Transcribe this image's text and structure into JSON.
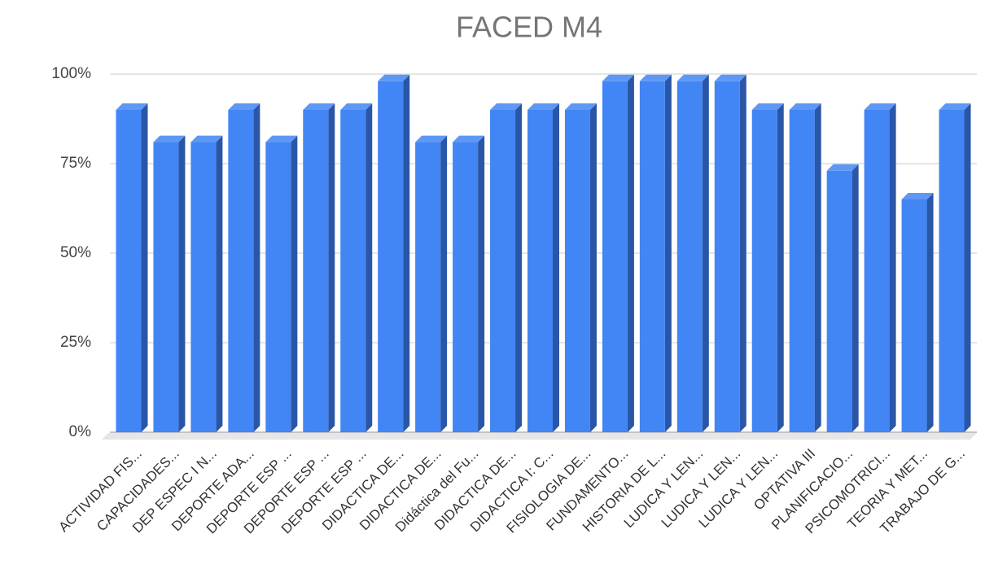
{
  "chart_data": {
    "type": "bar3d",
    "title": "FACED M4",
    "categories": [
      "ACTIVIDAD FIS...",
      "CAPACIDADES...",
      "DEP ESPEC I N...",
      "DEPORTE ADA...",
      "DEPORTE ESP ...",
      "DEPORTE ESP ...",
      "DEPORTE ESP ...",
      "DIDACTICA DE...",
      "DIDACTICA DE...",
      "Didáctica del Fu...",
      "DIDACTICA DE...",
      "DIDACTICA I: C...",
      "FISIOLOGIA DE...",
      "FUNDAMENTO...",
      "HISTORIA DE L...",
      "LUDICA Y LEN...",
      "LUDICA Y LEN...",
      "LUDICA Y LEN...",
      "OPTATIVA III",
      "PLANIFICACIO...",
      "PSICOMOTRICI...",
      "TEORIA Y MET...",
      "TRABAJO DE G..."
    ],
    "values": [
      90,
      81,
      81,
      90,
      81,
      90,
      90,
      98,
      81,
      81,
      90,
      90,
      90,
      98,
      98,
      98,
      98,
      90,
      90,
      73,
      90,
      65,
      90
    ],
    "color": "#4285f4",
    "ylim": [
      0,
      100
    ],
    "yticks": [
      {
        "value": 0,
        "label": "0%"
      },
      {
        "value": 25,
        "label": "25%"
      },
      {
        "value": 50,
        "label": "50%"
      },
      {
        "value": 75,
        "label": "75%"
      },
      {
        "value": 100,
        "label": "100%"
      }
    ],
    "grid": true
  }
}
